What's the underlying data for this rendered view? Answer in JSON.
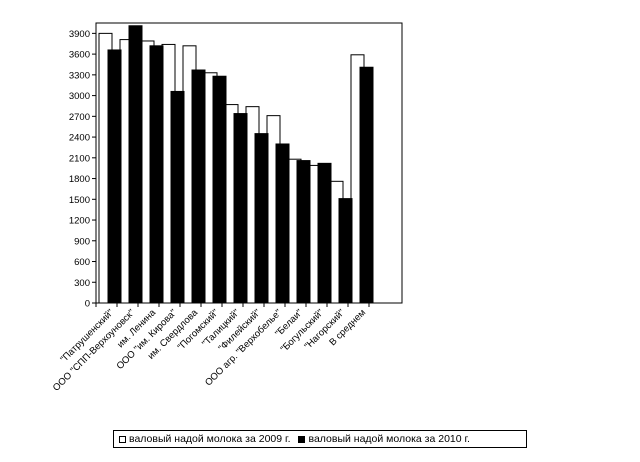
{
  "chart_data": {
    "type": "bar",
    "categories": [
      "\"Патрушенский\"",
      "ООО \"СПП-Верхоуновск\"",
      "им. Ленина",
      "ООО \"им. Кирова\"",
      "им. Свердлова",
      "\"Погомский\"",
      "\"Талицкий\"",
      "\"Филейский\"",
      "ООО агр. \"Верхобелье\"",
      "\"Белаи\"",
      "\"Богульский\"",
      "\"Нагорский\"",
      "В среднем"
    ],
    "series": [
      {
        "name": "валовый надой молока за 2009 г.",
        "color": "#ffffff",
        "values": [
          3900,
          3810,
          3790,
          3740,
          3720,
          3330,
          2870,
          2840,
          2710,
          2080,
          1990,
          1760,
          3590
        ]
      },
      {
        "name": "валовый надой молока за 2010 г.",
        "color": "#000000",
        "values": [
          3660,
          4010,
          3720,
          3060,
          3370,
          3280,
          2740,
          2450,
          2300,
          2060,
          2020,
          1510,
          3410
        ]
      }
    ],
    "yticks": [
      0,
      300,
      600,
      900,
      1200,
      1500,
      1800,
      2100,
      2400,
      2700,
      3000,
      3300,
      3600,
      3900
    ],
    "ylim": [
      0,
      4050
    ],
    "grid": false,
    "legend_position": "bottom",
    "title": "",
    "xlabel": "",
    "ylabel": ""
  }
}
